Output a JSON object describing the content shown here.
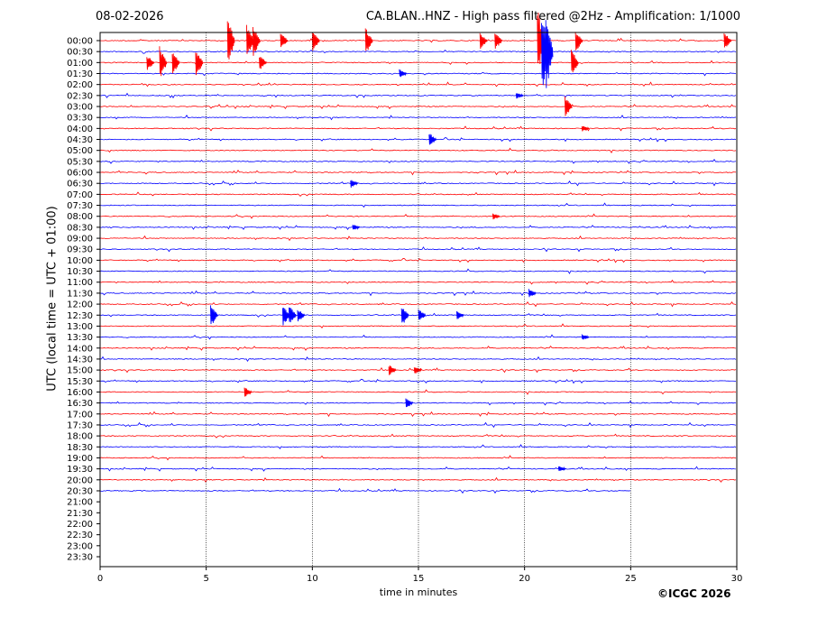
{
  "header": {
    "date": "08-02-2026",
    "title": "CA.BLAN..HNZ - High pass filtered @2Hz - Amplification: 1/1000"
  },
  "footer": {
    "copyright": "©ICGC 2026"
  },
  "chart_data": {
    "type": "line",
    "title": "CA.BLAN..HNZ - High pass filtered @2Hz - Amplification: 1/1000",
    "xlabel": "time in minutes",
    "ylabel": "UTC (local time = UTC + 01:00)",
    "xlim": [
      0,
      30
    ],
    "xticks": [
      0,
      5,
      10,
      15,
      20,
      25,
      30
    ],
    "yticks": [
      "00:00",
      "00:30",
      "01:00",
      "01:30",
      "02:00",
      "02:30",
      "03:00",
      "03:30",
      "04:00",
      "04:30",
      "05:00",
      "05:30",
      "06:00",
      "06:30",
      "07:00",
      "07:30",
      "08:00",
      "08:30",
      "09:00",
      "09:30",
      "10:00",
      "10:30",
      "11:00",
      "11:30",
      "12:00",
      "12:30",
      "13:00",
      "13:30",
      "14:00",
      "14:30",
      "15:00",
      "15:30",
      "16:00",
      "16:30",
      "17:00",
      "17:30",
      "18:00",
      "18:30",
      "19:00",
      "19:30",
      "20:00",
      "20:30",
      "21:00",
      "21:30",
      "22:00",
      "22:30",
      "23:00",
      "23:30"
    ],
    "vertical_gridlines": [
      5,
      10,
      15,
      20,
      25
    ],
    "grid_style": "dotted",
    "trace_colors": [
      "#ff0000",
      "#0000ff"
    ],
    "last_recorded_row": "20:30",
    "last_recorded_minute": 25,
    "events": [
      {
        "row": "00:00",
        "minute": 6.0,
        "amp": 2.2
      },
      {
        "row": "00:00",
        "minute": 6.9,
        "amp": 1.5
      },
      {
        "row": "00:00",
        "minute": 7.2,
        "amp": 1.5
      },
      {
        "row": "00:00",
        "minute": 8.5,
        "amp": 0.8
      },
      {
        "row": "00:00",
        "minute": 10.0,
        "amp": 1.0
      },
      {
        "row": "00:00",
        "minute": 12.5,
        "amp": 1.2
      },
      {
        "row": "00:00",
        "minute": 17.9,
        "amp": 0.8
      },
      {
        "row": "00:00",
        "minute": 18.6,
        "amp": 0.8
      },
      {
        "row": "00:00",
        "minute": 20.6,
        "amp": 3.0
      },
      {
        "row": "00:00",
        "minute": 22.4,
        "amp": 1.0
      },
      {
        "row": "00:00",
        "minute": 29.4,
        "amp": 0.8
      },
      {
        "row": "00:30",
        "minute": 20.8,
        "amp": 4.0
      },
      {
        "row": "00:30",
        "minute": 21.0,
        "amp": 3.5
      },
      {
        "row": "01:00",
        "minute": 2.2,
        "amp": 0.7
      },
      {
        "row": "01:00",
        "minute": 2.8,
        "amp": 1.5
      },
      {
        "row": "01:00",
        "minute": 3.4,
        "amp": 1.2
      },
      {
        "row": "01:00",
        "minute": 4.5,
        "amp": 1.3
      },
      {
        "row": "01:00",
        "minute": 7.5,
        "amp": 0.7
      },
      {
        "row": "01:00",
        "minute": 22.2,
        "amp": 1.2
      },
      {
        "row": "01:30",
        "minute": 14.1,
        "amp": 0.4
      },
      {
        "row": "02:30",
        "minute": 19.6,
        "amp": 0.3
      },
      {
        "row": "03:00",
        "minute": 21.9,
        "amp": 1.0
      },
      {
        "row": "04:00",
        "minute": 22.7,
        "amp": 0.3
      },
      {
        "row": "04:30",
        "minute": 15.5,
        "amp": 0.6
      },
      {
        "row": "06:30",
        "minute": 11.8,
        "amp": 0.4
      },
      {
        "row": "08:00",
        "minute": 18.5,
        "amp": 0.3
      },
      {
        "row": "08:30",
        "minute": 11.9,
        "amp": 0.3
      },
      {
        "row": "11:30",
        "minute": 20.2,
        "amp": 0.4
      },
      {
        "row": "12:30",
        "minute": 5.2,
        "amp": 1.0
      },
      {
        "row": "12:30",
        "minute": 8.6,
        "amp": 1.0
      },
      {
        "row": "12:30",
        "minute": 8.9,
        "amp": 0.9
      },
      {
        "row": "12:30",
        "minute": 9.3,
        "amp": 0.6
      },
      {
        "row": "12:30",
        "minute": 14.2,
        "amp": 1.0
      },
      {
        "row": "12:30",
        "minute": 15.0,
        "amp": 0.6
      },
      {
        "row": "12:30",
        "minute": 16.8,
        "amp": 0.4
      },
      {
        "row": "13:30",
        "minute": 22.7,
        "amp": 0.3
      },
      {
        "row": "15:00",
        "minute": 13.6,
        "amp": 0.5
      },
      {
        "row": "15:00",
        "minute": 14.8,
        "amp": 0.4
      },
      {
        "row": "16:00",
        "minute": 6.8,
        "amp": 0.5
      },
      {
        "row": "16:30",
        "minute": 14.4,
        "amp": 0.5
      },
      {
        "row": "19:30",
        "minute": 21.6,
        "amp": 0.3
      }
    ]
  }
}
